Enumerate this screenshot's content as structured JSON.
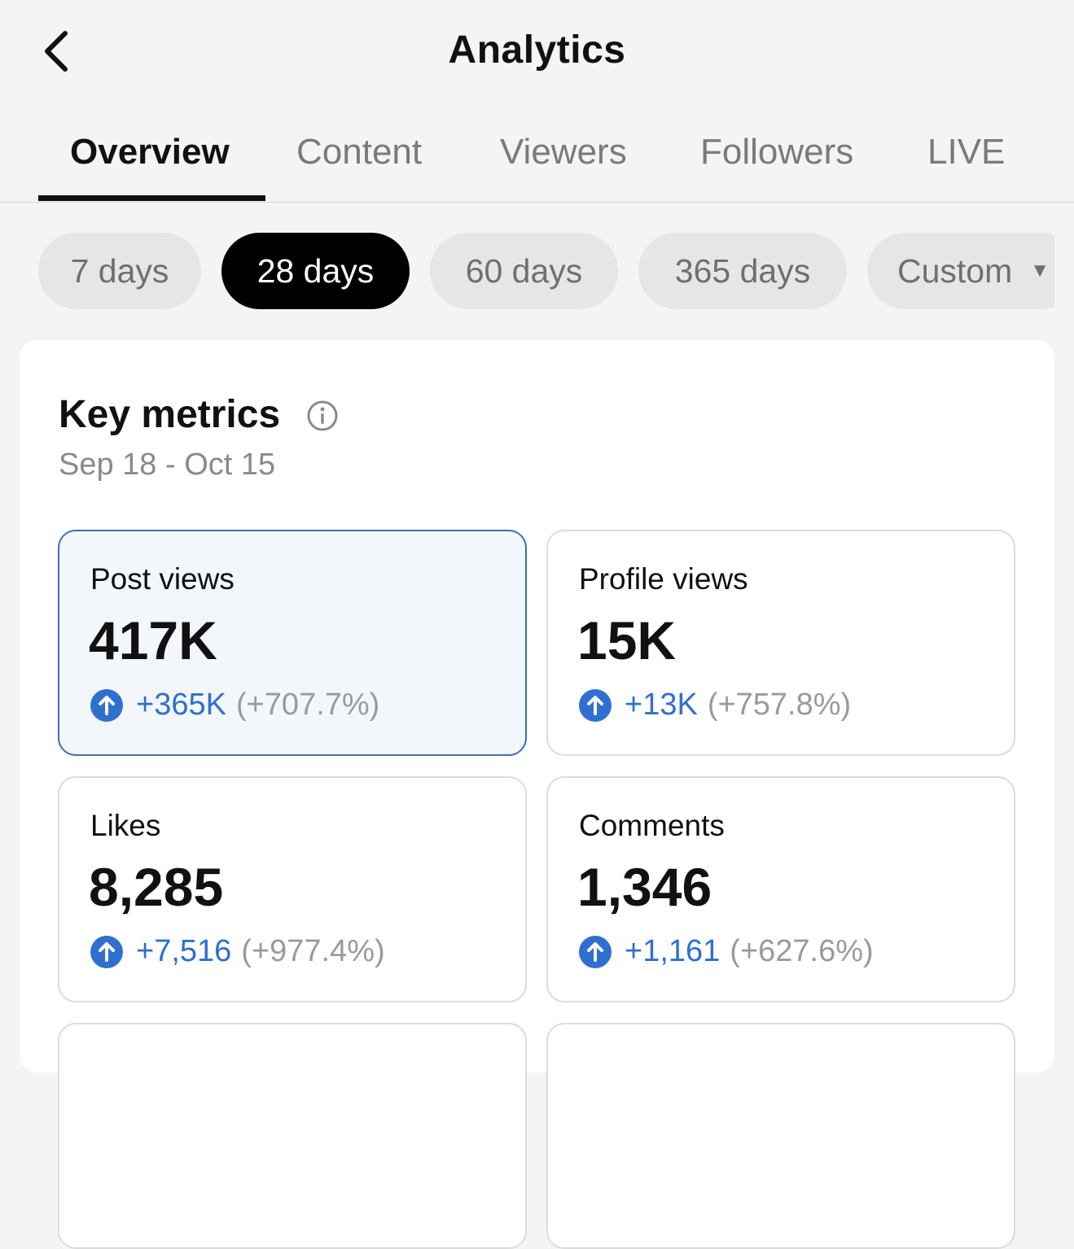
{
  "header": {
    "title": "Analytics"
  },
  "tabs": [
    {
      "label": "Overview",
      "active": true
    },
    {
      "label": "Content",
      "active": false
    },
    {
      "label": "Viewers",
      "active": false
    },
    {
      "label": "Followers",
      "active": false
    },
    {
      "label": "LIVE",
      "active": false
    }
  ],
  "ranges": [
    {
      "label": "7 days",
      "active": false
    },
    {
      "label": "28 days",
      "active": true
    },
    {
      "label": "60 days",
      "active": false
    },
    {
      "label": "365 days",
      "active": false
    },
    {
      "label": "Custom",
      "active": false
    }
  ],
  "key_metrics": {
    "title": "Key metrics",
    "date_range": "Sep 18 - Oct 15",
    "metrics": [
      {
        "label": "Post views",
        "value": "417K",
        "delta": "+365K",
        "percent": "(+707.7%)",
        "selected": true
      },
      {
        "label": "Profile views",
        "value": "15K",
        "delta": "+13K",
        "percent": "(+757.8%)",
        "selected": false
      },
      {
        "label": "Likes",
        "value": "8,285",
        "delta": "+7,516",
        "percent": "(+977.4%)",
        "selected": false
      },
      {
        "label": "Comments",
        "value": "1,346",
        "delta": "+1,161",
        "percent": "(+627.6%)",
        "selected": false
      }
    ]
  },
  "colors": {
    "accent_blue": "#2f6fd0",
    "selected_border": "#3b6fb6",
    "active_chip": "#000000"
  },
  "icons": {
    "back": "chevron-left-icon",
    "info": "info-icon",
    "trend": "arrow-up-circle-icon"
  }
}
